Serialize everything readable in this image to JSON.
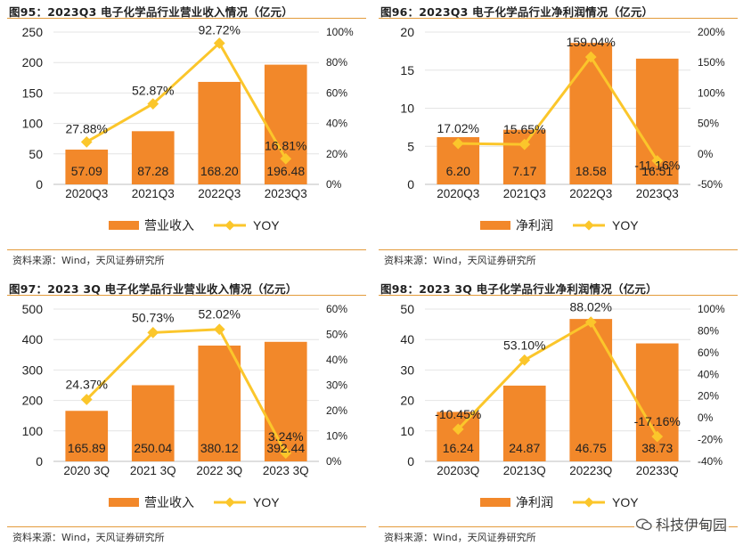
{
  "colors": {
    "bar": "#f2882a",
    "line": "#fbc62b",
    "accent_line": "#e39b3b",
    "text": "#222222"
  },
  "panels": [
    {
      "title": "图95：2023Q3 电子化学品行业营业收入情况（亿元）",
      "source": "资料来源：Wind，天风证券研究所",
      "legend_bar": "营业收入",
      "legend_line": "YOY"
    },
    {
      "title": "图96：2023Q3 电子化学品行业净利润情况（亿元）",
      "source": "资料来源：Wind，天风证券研究所",
      "legend_bar": "净利润",
      "legend_line": "YOY"
    },
    {
      "title": "图97：2023 3Q 电子化学品行业营业收入情况（亿元）",
      "source": "资料来源：Wind，天风证券研究所",
      "legend_bar": "营业收入",
      "legend_line": "YOY"
    },
    {
      "title": "图98：2023 3Q 电子化学品行业净利润情况（亿元）",
      "source": "资料来源：Wind，天风证券研究所",
      "legend_bar": "净利润",
      "legend_line": "YOY"
    }
  ],
  "watermark": {
    "text": "科技伊甸园",
    "icon": "wechat-icon"
  },
  "chart_data": [
    {
      "type": "bar",
      "title": "图95：2023Q3 电子化学品行业营业收入情况（亿元）",
      "categories": [
        "2020Q3",
        "2021Q3",
        "2022Q3",
        "2023Q3"
      ],
      "series": [
        {
          "name": "营业收入",
          "type": "bar",
          "axis": "left",
          "values": [
            57.09,
            87.28,
            168.2,
            196.48
          ],
          "labels": [
            "57.09",
            "87.28",
            "168.20",
            "196.48"
          ]
        },
        {
          "name": "YOY",
          "type": "line",
          "axis": "right",
          "values": [
            27.88,
            52.87,
            92.72,
            16.81
          ],
          "labels": [
            "27.88%",
            "52.87%",
            "92.72%",
            "16.81%"
          ]
        }
      ],
      "y_left": {
        "min": 0,
        "max": 250,
        "step": 50,
        "ticks": [
          "0",
          "50",
          "100",
          "150",
          "200",
          "250"
        ]
      },
      "y_right": {
        "min": 0,
        "max": 100,
        "step": 20,
        "ticks": [
          "0%",
          "20%",
          "40%",
          "60%",
          "80%",
          "100%"
        ]
      },
      "legend": "bottom"
    },
    {
      "type": "bar",
      "title": "图96：2023Q3 电子化学品行业净利润情况（亿元）",
      "categories": [
        "2020Q3",
        "2021Q3",
        "2022Q3",
        "2023Q3"
      ],
      "series": [
        {
          "name": "净利润",
          "type": "bar",
          "axis": "left",
          "values": [
            6.2,
            7.17,
            18.58,
            16.51
          ],
          "labels": [
            "6.20",
            "7.17",
            "18.58",
            "16.51"
          ]
        },
        {
          "name": "YOY",
          "type": "line",
          "axis": "right",
          "values": [
            17.02,
            15.65,
            159.04,
            -11.16
          ],
          "labels": [
            "17.02%",
            "15.65%",
            "159.04%",
            "-11.16%"
          ]
        }
      ],
      "y_left": {
        "min": 0,
        "max": 20,
        "step": 5,
        "ticks": [
          "0",
          "5",
          "10",
          "15",
          "20"
        ]
      },
      "y_right": {
        "min": -50,
        "max": 200,
        "step": 50,
        "ticks": [
          "-50%",
          "0%",
          "50%",
          "100%",
          "150%",
          "200%"
        ]
      },
      "legend": "bottom"
    },
    {
      "type": "bar",
      "title": "图97：2023 3Q 电子化学品行业营业收入情况（亿元）",
      "categories": [
        "2020 3Q",
        "2021 3Q",
        "2022 3Q",
        "2023 3Q"
      ],
      "series": [
        {
          "name": "营业收入",
          "type": "bar",
          "axis": "left",
          "values": [
            165.89,
            250.04,
            380.12,
            392.44
          ],
          "labels": [
            "165.89",
            "250.04",
            "380.12",
            "392.44"
          ]
        },
        {
          "name": "YOY",
          "type": "line",
          "axis": "right",
          "values": [
            24.37,
            50.73,
            52.02,
            3.24
          ],
          "labels": [
            "24.37%",
            "50.73%",
            "52.02%",
            "3.24%"
          ]
        }
      ],
      "y_left": {
        "min": 0,
        "max": 500,
        "step": 100,
        "ticks": [
          "0",
          "100",
          "200",
          "300",
          "400",
          "500"
        ]
      },
      "y_right": {
        "min": 0,
        "max": 60,
        "step": 10,
        "ticks": [
          "0%",
          "10%",
          "20%",
          "30%",
          "40%",
          "50%",
          "60%"
        ]
      },
      "legend": "bottom"
    },
    {
      "type": "bar",
      "title": "图98：2023 3Q 电子化学品行业净利润情况（亿元）",
      "categories": [
        "20203Q",
        "20213Q",
        "20223Q",
        "20233Q"
      ],
      "series": [
        {
          "name": "净利润",
          "type": "bar",
          "axis": "left",
          "values": [
            16.24,
            24.87,
            46.75,
            38.73
          ],
          "labels": [
            "16.24",
            "24.87",
            "46.75",
            "38.73"
          ]
        },
        {
          "name": "YOY",
          "type": "line",
          "axis": "right",
          "values": [
            -10.45,
            53.1,
            88.02,
            -17.16
          ],
          "labels": [
            "-10.45%",
            "53.10%",
            "88.02%",
            "-17.16%"
          ]
        }
      ],
      "y_left": {
        "min": 0,
        "max": 50,
        "step": 10,
        "ticks": [
          "0",
          "10",
          "20",
          "30",
          "40",
          "50"
        ]
      },
      "y_right": {
        "min": -40,
        "max": 100,
        "step": 20,
        "ticks": [
          "-40%",
          "-20%",
          "0%",
          "20%",
          "40%",
          "60%",
          "80%",
          "100%"
        ]
      },
      "legend": "bottom"
    }
  ]
}
